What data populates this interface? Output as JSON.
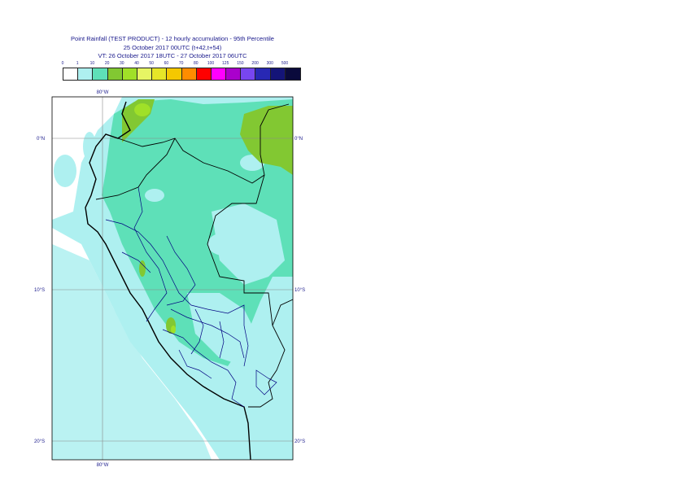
{
  "title": {
    "line1": "Point Rainfall (TEST PRODUCT) - 12 hourly accumulation - 95th Percentile",
    "line2": "25 October 2017 00UTC (t+42,t+54)",
    "line3": "VT: 26 October 2017 18UTC - 27 October 2017 06UTC"
  },
  "legend": {
    "thresholds": [
      "0",
      "1",
      "10",
      "20",
      "30",
      "40",
      "50",
      "60",
      "70",
      "80",
      "100",
      "125",
      "150",
      "200",
      "300",
      "500"
    ],
    "colors": [
      "#ffffff",
      "#aef0f0",
      "#5ee0b8",
      "#82c832",
      "#a0e028",
      "#e6f564",
      "#e6e628",
      "#f5c800",
      "#ff8c00",
      "#ff0000",
      "#ff00ff",
      "#aa00cc",
      "#7846f0",
      "#2828b4",
      "#141478",
      "#0a0a3c"
    ]
  },
  "map": {
    "lat_labels": [
      "0°N",
      "10°S",
      "20°S"
    ],
    "lon_label": "80°W",
    "fill_colors": {
      "ocean": "#aef0f0",
      "land_light": "#aef0f0",
      "land_mid": "#5ee0b8",
      "land_high": "#82c832",
      "land_peak": "#a0e028"
    },
    "line_colors": {
      "coast": "#000000",
      "border": "#000080",
      "grid": "#888888"
    }
  }
}
